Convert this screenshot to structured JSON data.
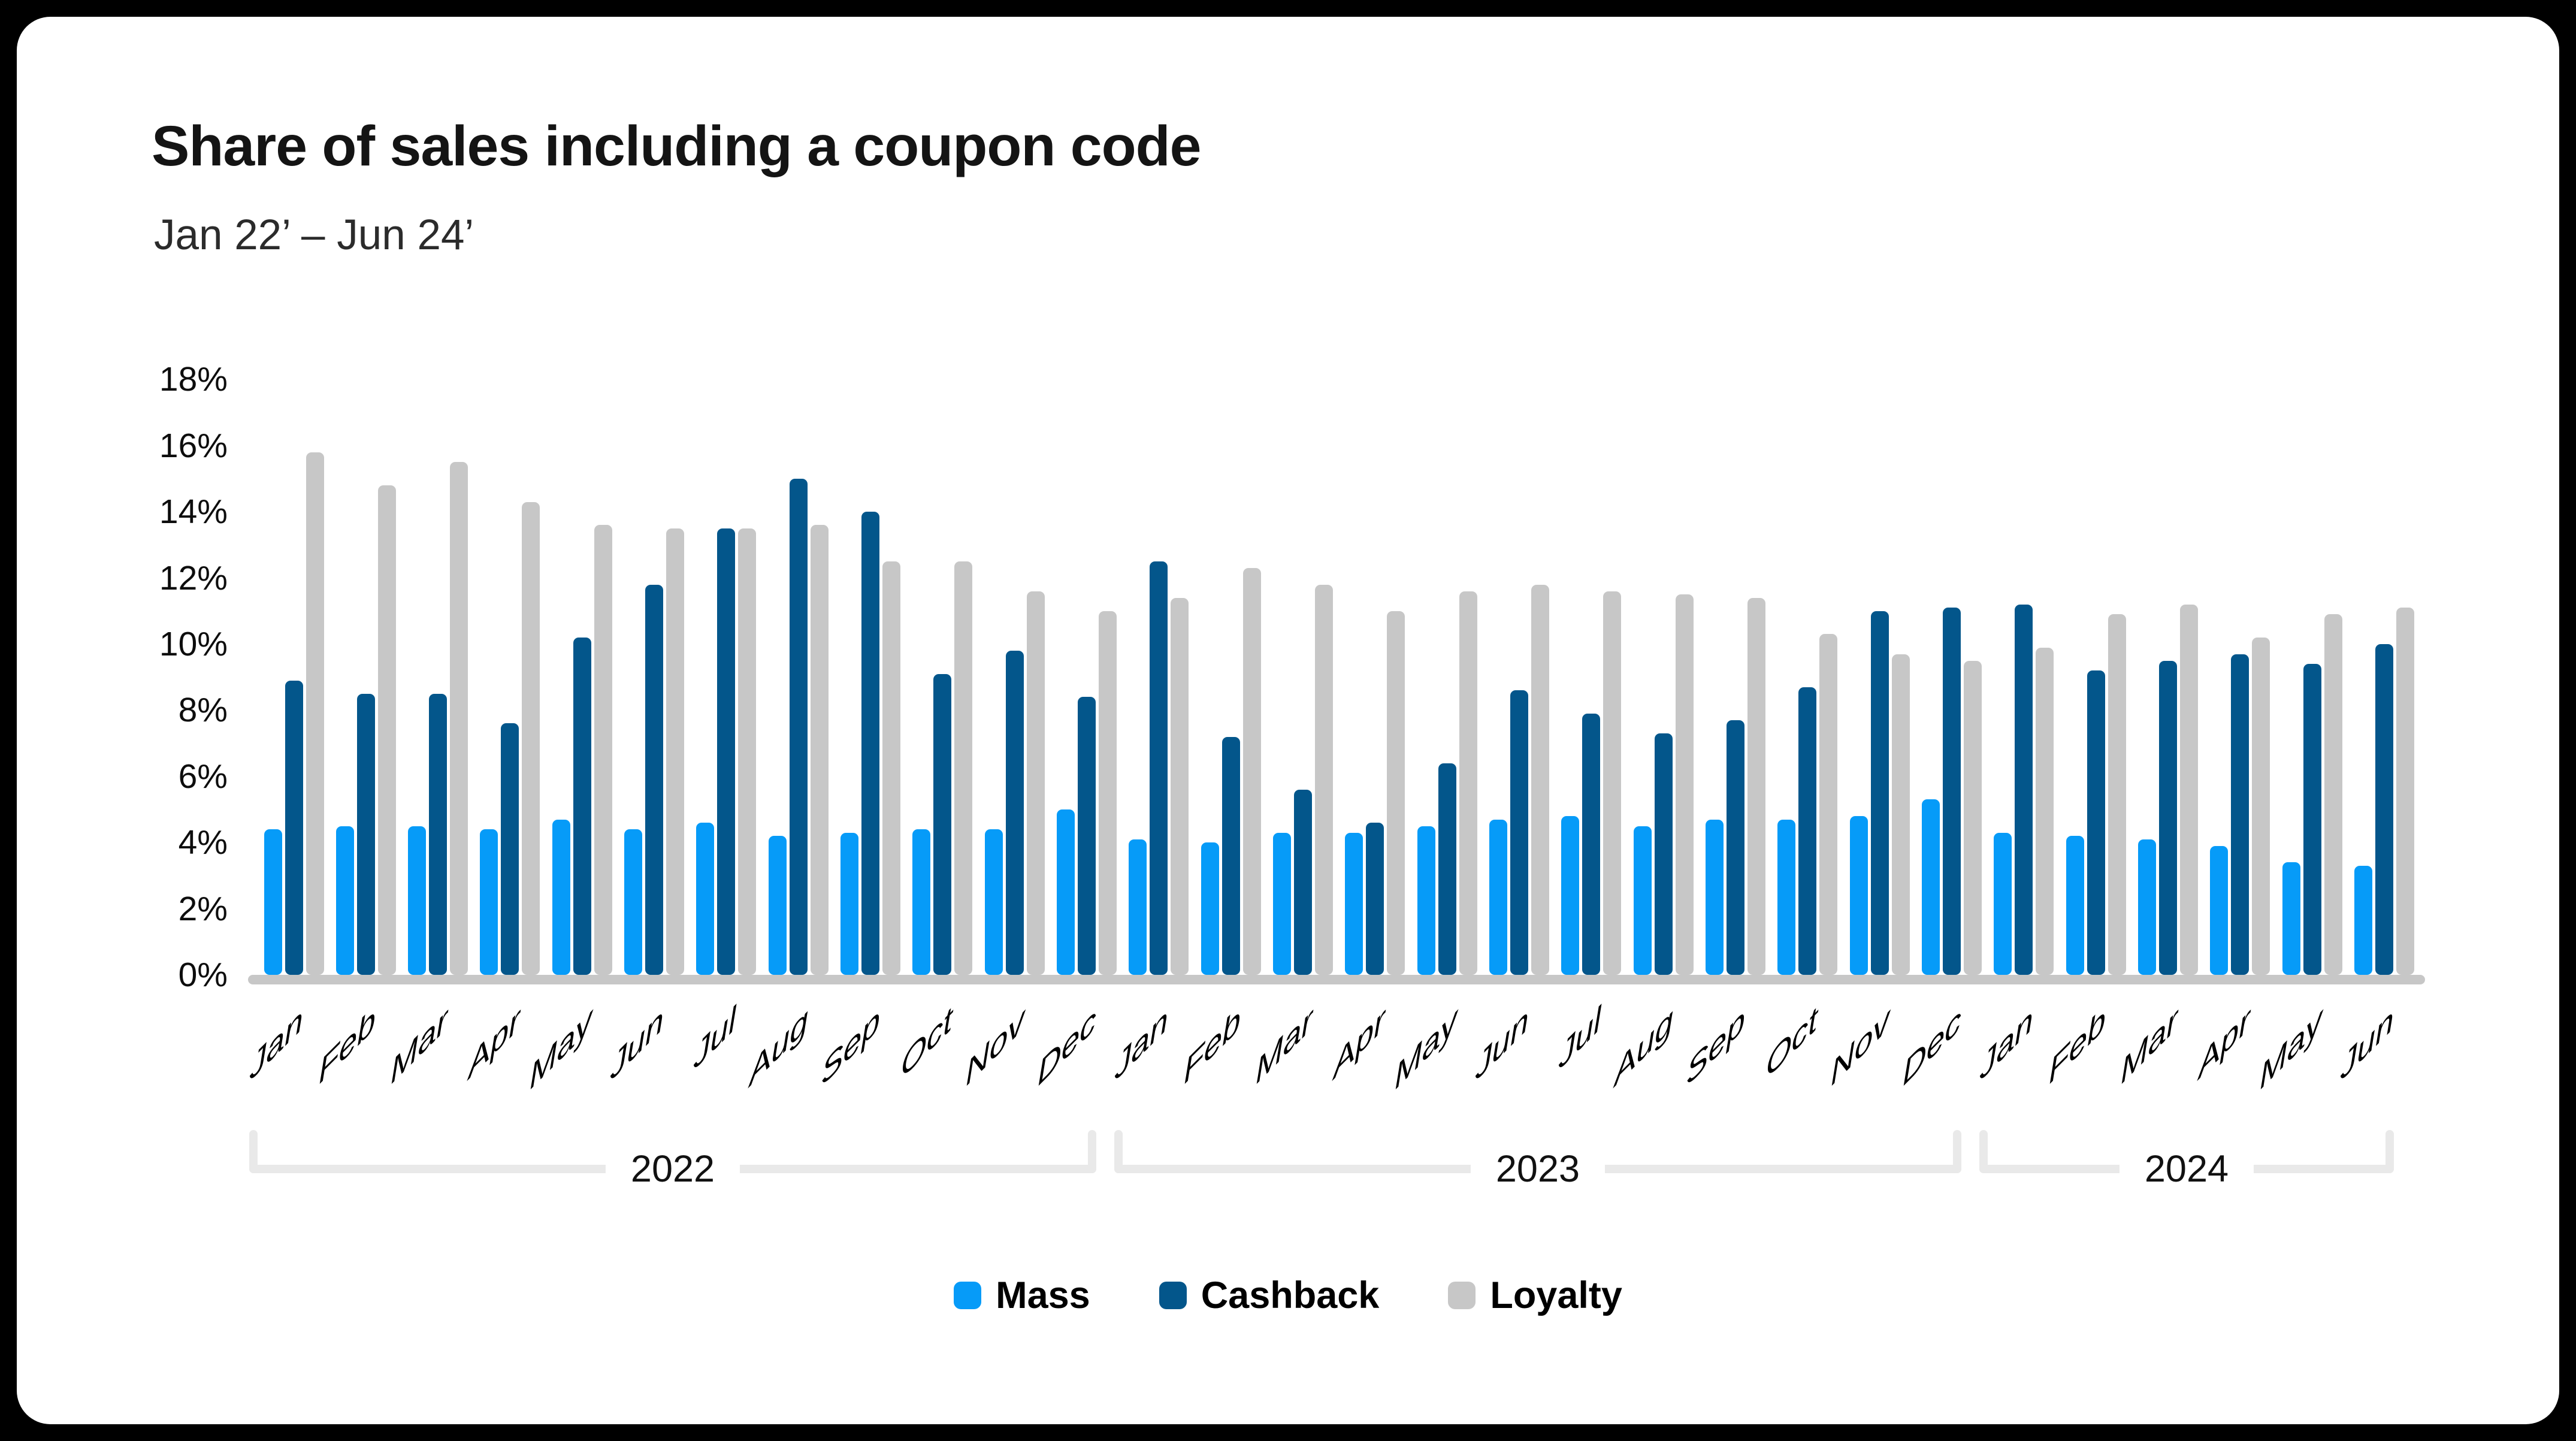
{
  "title": "Share of sales including a coupon code",
  "subtitle": "Jan 22’ – Jun 24’",
  "chart_data": {
    "type": "bar",
    "title": "Share of sales including a coupon code",
    "subtitle": "Jan 22’ – Jun 24’",
    "xlabel": "",
    "ylabel": "",
    "ylim": [
      0,
      18
    ],
    "ytick_step": 2,
    "ytick_suffix": "%",
    "grid": false,
    "legend_position": "bottom",
    "categories": [
      "Jan",
      "Feb",
      "Mar",
      "Apr",
      "May",
      "Jun",
      "Jul",
      "Aug",
      "Sep",
      "Oct",
      "Nov",
      "Dec",
      "Jan",
      "Feb",
      "Mar",
      "Apr",
      "May",
      "Jun",
      "Jul",
      "Aug",
      "Sep",
      "Oct",
      "Nov",
      "Dec",
      "Jan",
      "Feb",
      "Mar",
      "Apr",
      "May",
      "Jun"
    ],
    "year_groups": [
      {
        "label": "2022",
        "start": 0,
        "months": 12
      },
      {
        "label": "2023",
        "start": 12,
        "months": 12
      },
      {
        "label": "2024",
        "start": 24,
        "months": 6
      }
    ],
    "series": [
      {
        "name": "Mass",
        "color": "#069bf8",
        "values": [
          4.4,
          4.5,
          4.5,
          4.4,
          4.7,
          4.4,
          4.6,
          4.2,
          4.3,
          4.4,
          4.4,
          5.0,
          4.1,
          4.0,
          4.3,
          4.3,
          4.5,
          4.7,
          4.8,
          4.5,
          4.7,
          4.7,
          4.8,
          5.3,
          4.3,
          4.2,
          4.1,
          3.9,
          3.4,
          3.3
        ]
      },
      {
        "name": "Cashback",
        "color": "#03568b",
        "values": [
          8.9,
          8.5,
          8.5,
          7.6,
          10.2,
          11.8,
          13.5,
          15.0,
          14.0,
          9.1,
          9.8,
          8.4,
          12.5,
          7.2,
          5.6,
          4.6,
          6.4,
          8.6,
          7.9,
          7.3,
          7.7,
          8.7,
          11.0,
          11.1,
          11.2,
          9.2,
          9.5,
          9.7,
          9.4,
          10.0
        ]
      },
      {
        "name": "Loyalty",
        "color": "#c7c7c7",
        "values": [
          15.8,
          14.8,
          15.5,
          14.3,
          13.6,
          13.5,
          13.5,
          13.6,
          12.5,
          12.5,
          11.6,
          11.0,
          11.4,
          12.3,
          11.8,
          11.0,
          11.6,
          11.8,
          11.6,
          11.5,
          11.4,
          10.3,
          9.7,
          9.5,
          9.9,
          10.9,
          11.2,
          10.2,
          10.9,
          11.1
        ]
      }
    ]
  },
  "colors": {
    "background": "#000000",
    "card": "#ffffff",
    "axis_line": "#c7c7c7",
    "bracket": "#e9e9e9",
    "title": "#141414",
    "subtitle": "#2b2b2b"
  }
}
